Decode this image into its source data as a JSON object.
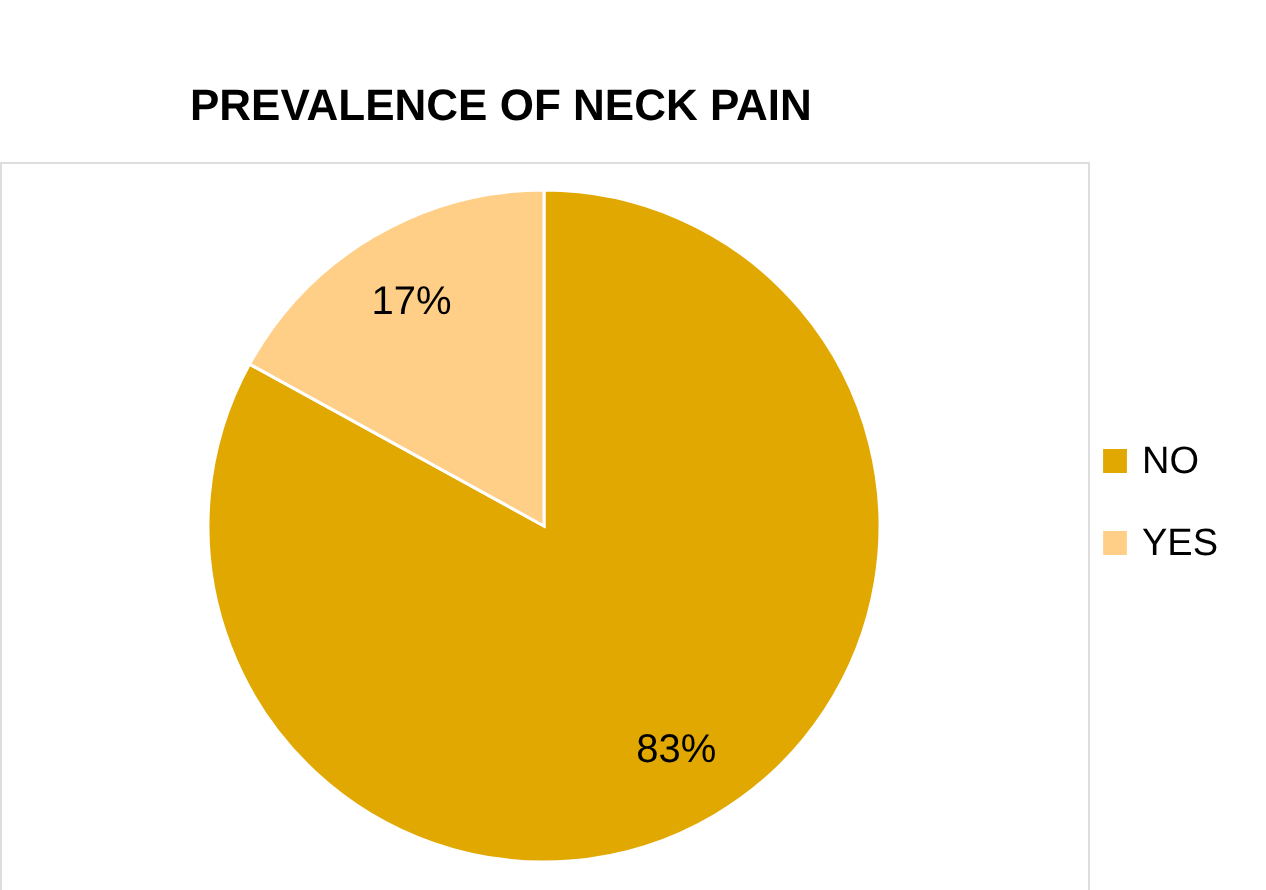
{
  "chart_data": {
    "type": "pie",
    "title": "PREVALENCE OF NECK PAIN",
    "categories": [
      "NO",
      "YES"
    ],
    "values": [
      83,
      17
    ],
    "colors": [
      "#e0a800",
      "#ffcf88"
    ],
    "value_labels": [
      "83%",
      "17%"
    ],
    "legend": "right"
  }
}
